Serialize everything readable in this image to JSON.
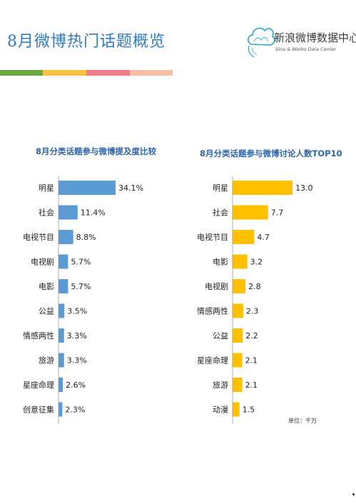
{
  "page": {
    "title": "8月微博热门话题概览",
    "logo_name": "新浪微博数据中心",
    "logo_subtitle": "Sina & Weibo Data Center"
  },
  "stripe_colors": [
    "#6aa843",
    "#f5c242",
    "#f07c89",
    "#f6bea2"
  ],
  "chart_data": [
    {
      "type": "bar",
      "orientation": "horizontal",
      "title": "8月分类话题参与微博提及度比较",
      "categories": [
        "明星",
        "社会",
        "电视节目",
        "电视剧",
        "电影",
        "公益",
        "情感两性",
        "旅游",
        "星座命理",
        "创意征集"
      ],
      "values": [
        34.1,
        11.4,
        8.8,
        5.7,
        5.7,
        3.5,
        3.3,
        3.3,
        2.6,
        2.3
      ],
      "value_labels": [
        "34.1%",
        "11.4%",
        "8.8%",
        "5.7%",
        "5.7%",
        "3.5%",
        "3.3%",
        "3.3%",
        "2.6%",
        "2.3%"
      ],
      "color": "#5b9bd5",
      "grid": false
    },
    {
      "type": "bar",
      "orientation": "horizontal",
      "title": "8月分类话题参与微博讨论人数TOP10",
      "categories": [
        "明星",
        "社会",
        "电视节目",
        "电影",
        "电视剧",
        "情感两性",
        "公益",
        "星座命理",
        "旅游",
        "动漫"
      ],
      "values": [
        13.0,
        7.7,
        4.7,
        3.2,
        2.8,
        2.3,
        2.2,
        2.1,
        2.1,
        1.5
      ],
      "value_labels": [
        "13.0",
        "7.7",
        "4.7",
        "3.2",
        "2.8",
        "2.3",
        "2.2",
        "2.1",
        "2.1",
        "1.5"
      ],
      "unit_label": "单位：千万",
      "color": "#ffc000",
      "grid": false
    }
  ]
}
